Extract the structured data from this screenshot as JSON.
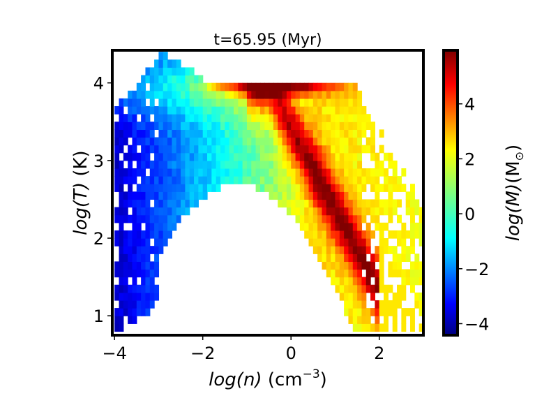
{
  "chart_data": {
    "type": "heatmap",
    "title": "t=65.95 (Myr)",
    "xlabel": {
      "var": "log(n)",
      "unit": "(cm",
      "exp": "−3",
      "close": ")"
    },
    "ylabel": {
      "var": "log(T)",
      "unit": "(K)"
    },
    "colorbar_label": {
      "var": "log(M)",
      "unit_open": "(M",
      "unit_sub": "⊙",
      "unit_close": ")"
    },
    "colormap": "jet",
    "xlim": [
      -4.05,
      3.0
    ],
    "ylim": [
      0.75,
      4.42
    ],
    "clim": [
      -4.42,
      5.95
    ],
    "x_ticks": [
      {
        "value": -4,
        "label": "−4"
      },
      {
        "value": -2,
        "label": "−2"
      },
      {
        "value": 0,
        "label": "0"
      },
      {
        "value": 2,
        "label": "2"
      }
    ],
    "y_ticks": [
      {
        "value": 1,
        "label": "1"
      },
      {
        "value": 2,
        "label": "2"
      },
      {
        "value": 3,
        "label": "3"
      },
      {
        "value": 4,
        "label": "4"
      }
    ],
    "colorbar_ticks": [
      {
        "value": 4,
        "label": "4"
      },
      {
        "value": 2,
        "label": "2"
      },
      {
        "value": 0,
        "label": "0"
      },
      {
        "value": -2,
        "label": "−2"
      },
      {
        "value": -4,
        "label": "−4"
      }
    ],
    "bin_width_logn": 0.1,
    "bin_height_logT": 0.1,
    "density_range": [
      -4.0,
      3.0
    ],
    "temperature_range": [
      0.8,
      4.4
    ],
    "description_values": {
      "peak_mass_log": 5.9,
      "peak_location": {
        "logn": -0.5,
        "logT": 3.95
      },
      "cold_tail_end": {
        "logn": 3.0,
        "logT": 1.35
      }
    },
    "grid": false,
    "legend": "none"
  }
}
